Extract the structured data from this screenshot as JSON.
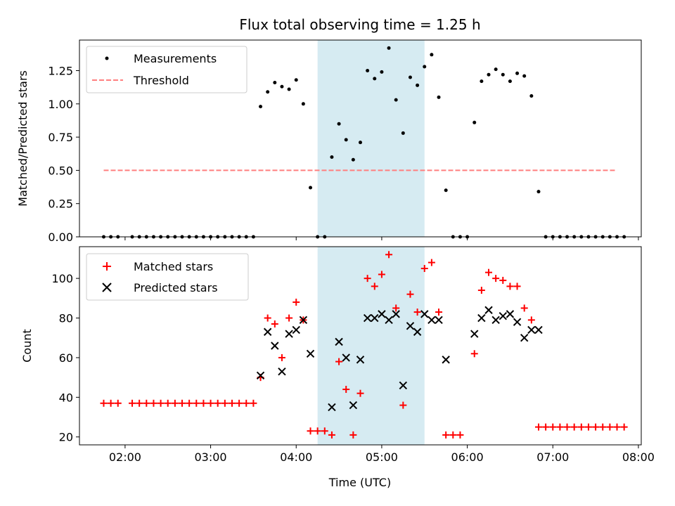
{
  "chart_data": [
    {
      "type": "scatter",
      "title": "Flux total observing time = 1.25 h",
      "ylabel": "Matched/Predicted stars",
      "xlabel": "",
      "x_unit": "hours UTC",
      "xlim": [
        "01:28",
        "08:02"
      ],
      "ylim": [
        0,
        1.48
      ],
      "grid": false,
      "legend_position": "top-left",
      "highlight_span": {
        "start": "04:15",
        "end": "05:30",
        "color": "#add8e6"
      },
      "xticks": [
        "02:00",
        "03:00",
        "04:00",
        "05:00",
        "06:00",
        "07:00",
        "08:00"
      ],
      "yticks": [
        "0.00",
        "0.25",
        "0.50",
        "0.75",
        "1.00",
        "1.25"
      ],
      "series": [
        {
          "name": "Measurements",
          "kind": "points",
          "color": "#000000",
          "points": [
            [
              "01:45",
              0
            ],
            [
              "01:50",
              0
            ],
            [
              "01:55",
              0
            ],
            [
              "02:05",
              0
            ],
            [
              "02:10",
              0
            ],
            [
              "02:15",
              0
            ],
            [
              "02:20",
              0
            ],
            [
              "02:25",
              0
            ],
            [
              "02:30",
              0
            ],
            [
              "02:35",
              0
            ],
            [
              "02:40",
              0
            ],
            [
              "02:45",
              0
            ],
            [
              "02:50",
              0
            ],
            [
              "02:55",
              0
            ],
            [
              "03:00",
              0
            ],
            [
              "03:05",
              0
            ],
            [
              "03:10",
              0
            ],
            [
              "03:15",
              0
            ],
            [
              "03:20",
              0
            ],
            [
              "03:25",
              0
            ],
            [
              "03:30",
              0
            ],
            [
              "03:35",
              0.98
            ],
            [
              "03:40",
              1.09
            ],
            [
              "03:45",
              1.16
            ],
            [
              "03:50",
              1.13
            ],
            [
              "03:55",
              1.11
            ],
            [
              "04:00",
              1.18
            ],
            [
              "04:05",
              1.0
            ],
            [
              "04:10",
              0.37
            ],
            [
              "04:15",
              0
            ],
            [
              "04:20",
              0
            ],
            [
              "04:25",
              0.6
            ],
            [
              "04:30",
              0.85
            ],
            [
              "04:35",
              0.73
            ],
            [
              "04:40",
              0.58
            ],
            [
              "04:45",
              0.71
            ],
            [
              "04:50",
              1.25
            ],
            [
              "04:55",
              1.19
            ],
            [
              "05:00",
              1.24
            ],
            [
              "05:05",
              1.42
            ],
            [
              "05:10",
              1.03
            ],
            [
              "05:15",
              0.78
            ],
            [
              "05:20",
              1.2
            ],
            [
              "05:25",
              1.14
            ],
            [
              "05:30",
              1.28
            ],
            [
              "05:35",
              1.37
            ],
            [
              "05:40",
              1.05
            ],
            [
              "05:45",
              0.35
            ],
            [
              "05:50",
              0
            ],
            [
              "05:55",
              0
            ],
            [
              "06:00",
              0
            ],
            [
              "06:05",
              0.86
            ],
            [
              "06:10",
              1.17
            ],
            [
              "06:15",
              1.22
            ],
            [
              "06:20",
              1.26
            ],
            [
              "06:25",
              1.22
            ],
            [
              "06:30",
              1.17
            ],
            [
              "06:35",
              1.23
            ],
            [
              "06:40",
              1.21
            ],
            [
              "06:45",
              1.06
            ],
            [
              "06:50",
              0.34
            ],
            [
              "06:55",
              0
            ],
            [
              "07:00",
              0
            ],
            [
              "07:05",
              0
            ],
            [
              "07:10",
              0
            ],
            [
              "07:15",
              0
            ],
            [
              "07:20",
              0
            ],
            [
              "07:25",
              0
            ],
            [
              "07:30",
              0
            ],
            [
              "07:35",
              0
            ],
            [
              "07:40",
              0
            ],
            [
              "07:45",
              0
            ],
            [
              "07:50",
              0
            ]
          ]
        },
        {
          "name": "Threshold",
          "kind": "dashed-line",
          "color": "#ff7f7f",
          "points": [
            [
              "01:45",
              0.5
            ],
            [
              "07:45",
              0.5
            ]
          ]
        }
      ]
    },
    {
      "type": "scatter",
      "title": "",
      "ylabel": "Count",
      "xlabel": "Time (UTC)",
      "xlim": [
        "01:28",
        "08:02"
      ],
      "ylim": [
        16,
        116
      ],
      "grid": false,
      "legend_position": "top-left",
      "highlight_span": {
        "start": "04:15",
        "end": "05:30",
        "color": "#add8e6"
      },
      "xticks": [
        "02:00",
        "03:00",
        "04:00",
        "05:00",
        "06:00",
        "07:00",
        "08:00"
      ],
      "yticks": [
        "20",
        "40",
        "60",
        "80",
        "100"
      ],
      "series": [
        {
          "name": "Matched stars",
          "kind": "plus",
          "color": "#ff0000",
          "points": [
            [
              "01:45",
              37
            ],
            [
              "01:50",
              37
            ],
            [
              "01:55",
              37
            ],
            [
              "02:05",
              37
            ],
            [
              "02:10",
              37
            ],
            [
              "02:15",
              37
            ],
            [
              "02:20",
              37
            ],
            [
              "02:25",
              37
            ],
            [
              "02:30",
              37
            ],
            [
              "02:35",
              37
            ],
            [
              "02:40",
              37
            ],
            [
              "02:45",
              37
            ],
            [
              "02:50",
              37
            ],
            [
              "02:55",
              37
            ],
            [
              "03:00",
              37
            ],
            [
              "03:05",
              37
            ],
            [
              "03:10",
              37
            ],
            [
              "03:15",
              37
            ],
            [
              "03:20",
              37
            ],
            [
              "03:25",
              37
            ],
            [
              "03:30",
              37
            ],
            [
              "03:35",
              50
            ],
            [
              "03:40",
              80
            ],
            [
              "03:45",
              77
            ],
            [
              "03:50",
              60
            ],
            [
              "03:55",
              80
            ],
            [
              "04:00",
              88
            ],
            [
              "04:05",
              79
            ],
            [
              "04:10",
              23
            ],
            [
              "04:15",
              23
            ],
            [
              "04:20",
              23
            ],
            [
              "04:25",
              21
            ],
            [
              "04:30",
              58
            ],
            [
              "04:35",
              44
            ],
            [
              "04:40",
              21
            ],
            [
              "04:45",
              42
            ],
            [
              "04:50",
              100
            ],
            [
              "04:55",
              96
            ],
            [
              "05:00",
              102
            ],
            [
              "05:05",
              112
            ],
            [
              "05:10",
              85
            ],
            [
              "05:15",
              36
            ],
            [
              "05:20",
              92
            ],
            [
              "05:25",
              83
            ],
            [
              "05:30",
              105
            ],
            [
              "05:35",
              108
            ],
            [
              "05:40",
              83
            ],
            [
              "05:45",
              21
            ],
            [
              "05:50",
              21
            ],
            [
              "05:55",
              21
            ],
            [
              "06:05",
              62
            ],
            [
              "06:10",
              94
            ],
            [
              "06:15",
              103
            ],
            [
              "06:20",
              100
            ],
            [
              "06:25",
              99
            ],
            [
              "06:30",
              96
            ],
            [
              "06:35",
              96
            ],
            [
              "06:40",
              85
            ],
            [
              "06:45",
              79
            ],
            [
              "06:50",
              25
            ],
            [
              "06:55",
              25
            ],
            [
              "07:00",
              25
            ],
            [
              "07:05",
              25
            ],
            [
              "07:10",
              25
            ],
            [
              "07:15",
              25
            ],
            [
              "07:20",
              25
            ],
            [
              "07:25",
              25
            ],
            [
              "07:30",
              25
            ],
            [
              "07:35",
              25
            ],
            [
              "07:40",
              25
            ],
            [
              "07:45",
              25
            ],
            [
              "07:50",
              25
            ]
          ]
        },
        {
          "name": "Predicted stars",
          "kind": "x",
          "color": "#000000",
          "points": [
            [
              "03:35",
              51
            ],
            [
              "03:40",
              73
            ],
            [
              "03:45",
              66
            ],
            [
              "03:50",
              53
            ],
            [
              "03:55",
              72
            ],
            [
              "04:00",
              74
            ],
            [
              "04:05",
              79
            ],
            [
              "04:10",
              62
            ],
            [
              "04:25",
              35
            ],
            [
              "04:30",
              68
            ],
            [
              "04:35",
              60
            ],
            [
              "04:40",
              36
            ],
            [
              "04:45",
              59
            ],
            [
              "04:50",
              80
            ],
            [
              "04:55",
              80
            ],
            [
              "05:00",
              82
            ],
            [
              "05:05",
              79
            ],
            [
              "05:10",
              82
            ],
            [
              "05:15",
              46
            ],
            [
              "05:20",
              76
            ],
            [
              "05:25",
              73
            ],
            [
              "05:30",
              82
            ],
            [
              "05:35",
              79
            ],
            [
              "05:40",
              79
            ],
            [
              "05:45",
              59
            ],
            [
              "06:05",
              72
            ],
            [
              "06:10",
              80
            ],
            [
              "06:15",
              84
            ],
            [
              "06:20",
              79
            ],
            [
              "06:25",
              81
            ],
            [
              "06:30",
              82
            ],
            [
              "06:35",
              78
            ],
            [
              "06:40",
              70
            ],
            [
              "06:45",
              74
            ],
            [
              "06:50",
              74
            ]
          ]
        }
      ]
    }
  ]
}
